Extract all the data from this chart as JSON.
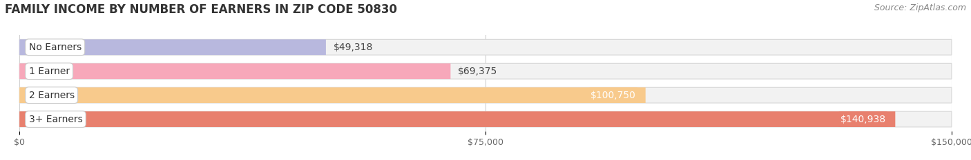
{
  "title": "FAMILY INCOME BY NUMBER OF EARNERS IN ZIP CODE 50830",
  "source": "Source: ZipAtlas.com",
  "categories": [
    "No Earners",
    "1 Earner",
    "2 Earners",
    "3+ Earners"
  ],
  "values": [
    49318,
    69375,
    100750,
    140938
  ],
  "bar_colors": [
    "#b8b8de",
    "#f7a8ba",
    "#f8ca8c",
    "#e8806e"
  ],
  "value_labels": [
    "$49,318",
    "$69,375",
    "$100,750",
    "$140,938"
  ],
  "value_inside": [
    false,
    false,
    true,
    true
  ],
  "xlim": [
    0,
    150000
  ],
  "xticks": [
    0,
    75000,
    150000
  ],
  "xtick_labels": [
    "$0",
    "$75,000",
    "$150,000"
  ],
  "background_color": "#ffffff",
  "bar_bg_color": "#f2f2f2",
  "bar_bg_edge_color": "#d8d8d8",
  "title_fontsize": 12,
  "source_fontsize": 9,
  "label_fontsize": 10,
  "value_fontsize": 10,
  "tick_fontsize": 9,
  "bar_height": 0.65,
  "bar_gap": 0.35
}
